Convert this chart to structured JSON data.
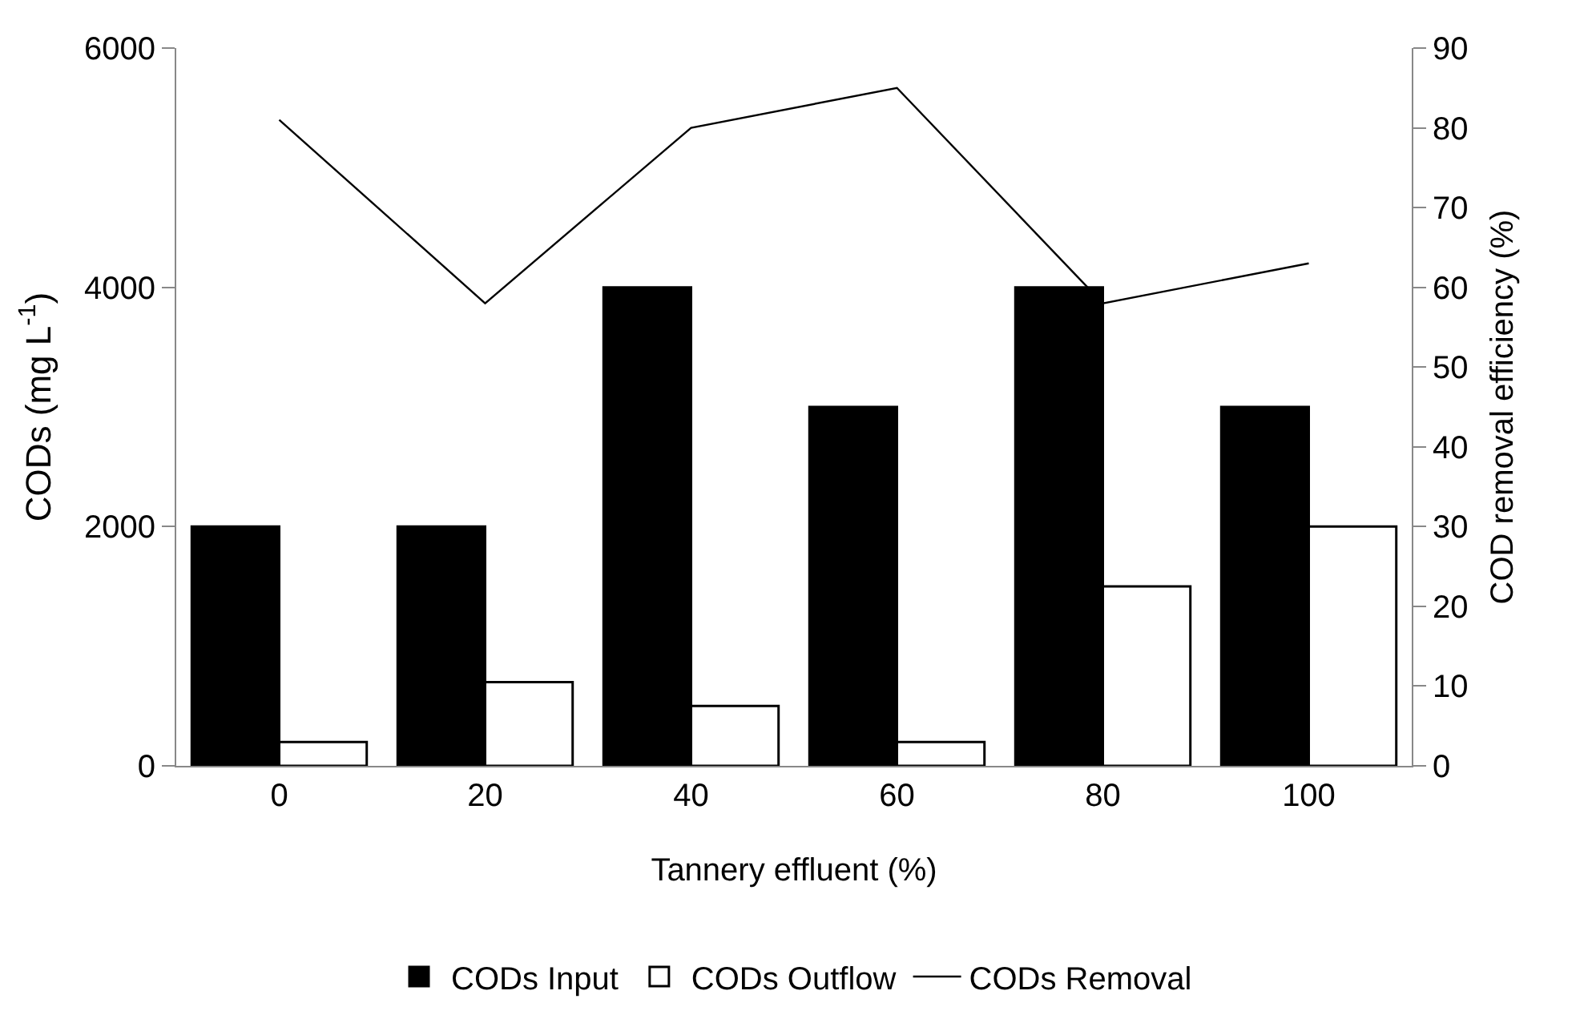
{
  "chart_data": {
    "type": "bar",
    "categories": [
      "0",
      "20",
      "40",
      "60",
      "80",
      "100"
    ],
    "xlabel": "Tannery effluent (%)",
    "ylabel": "CODs (mg L$^{-1}$)",
    "y2label": "COD removal efficiency (%)",
    "ylim": [
      0,
      6000
    ],
    "yticks": [
      0,
      2000,
      4000,
      6000
    ],
    "y2lim": [
      0,
      90
    ],
    "y2ticks": [
      0,
      10,
      20,
      30,
      40,
      50,
      60,
      70,
      80,
      90
    ],
    "grid": false,
    "legend": "bottom",
    "series": [
      {
        "name": "CODs Input",
        "color": "#000000",
        "values": [
          2000,
          2000,
          4000,
          3000,
          4000,
          3000
        ]
      },
      {
        "name": "CODs Outflow",
        "color": "#ffffff",
        "values": [
          200,
          700,
          500,
          200,
          1500,
          2000
        ]
      },
      {
        "name": "CODs Removal",
        "type": "line",
        "axis": "y2",
        "color": "#000000",
        "marker": "none",
        "line_style": "solid",
        "values": [
          81,
          58,
          80,
          85,
          58,
          63
        ]
      }
    ]
  }
}
